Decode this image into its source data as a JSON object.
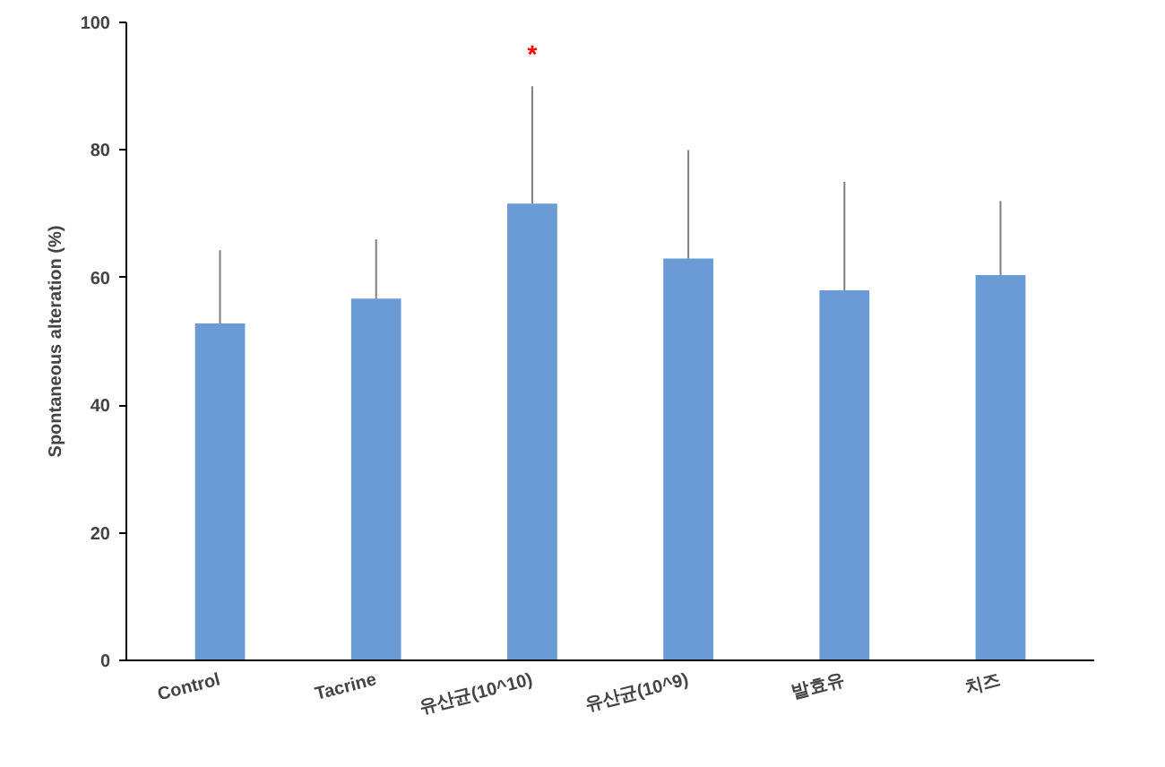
{
  "chart_data": {
    "type": "bar",
    "ylabel": "Spontaneous alteration (%)",
    "categories": [
      "Control",
      "Tacrine",
      "유산균(10^10)",
      "유산균(10^9)",
      "발효유",
      "치즈"
    ],
    "values": [
      52.8,
      56.7,
      71.6,
      63,
      58,
      60.4
    ],
    "errors": [
      [
        52.8,
        64.3
      ],
      [
        56.7,
        66
      ],
      [
        71.6,
        90
      ],
      [
        63,
        80
      ],
      [
        58,
        75
      ],
      [
        60.4,
        72
      ]
    ],
    "color": "#6a9bd5",
    "ylim": [
      0,
      100
    ],
    "yticks": [
      0,
      20,
      40,
      60,
      80,
      100
    ],
    "grid": false,
    "annotations": [
      "*"
    ]
  }
}
